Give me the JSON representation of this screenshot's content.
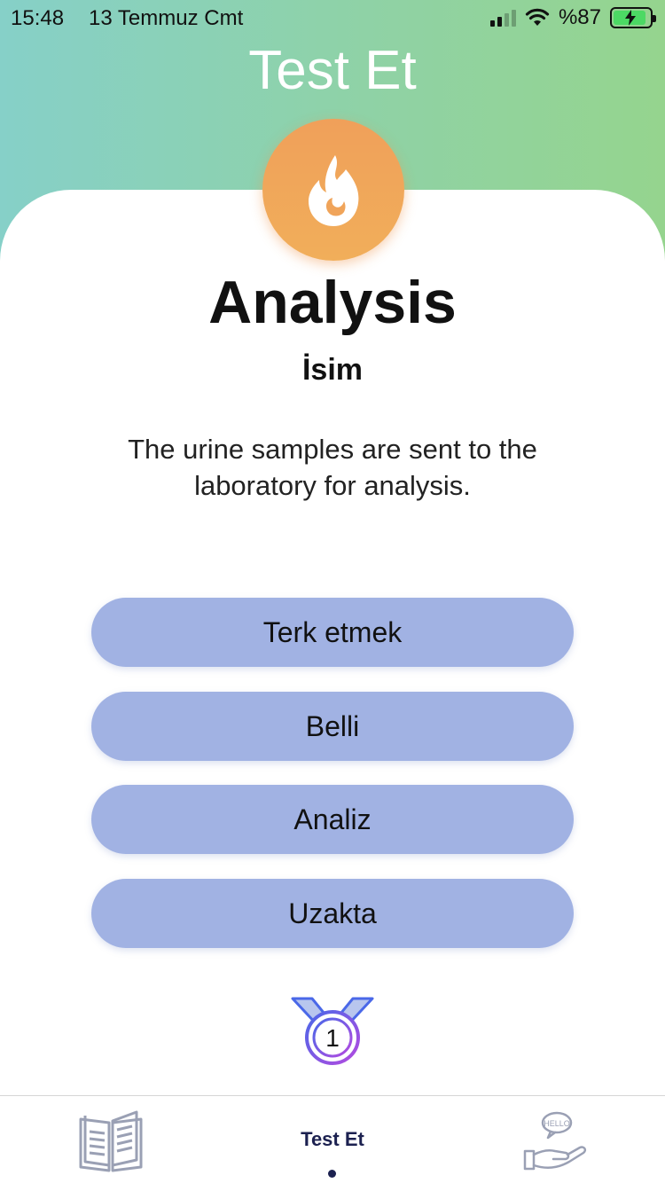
{
  "status_bar": {
    "time": "15:48",
    "date": "13 Temmuz Cmt",
    "battery": "%87"
  },
  "header": {
    "title": "Test Et"
  },
  "card": {
    "icon": "fire-icon",
    "word": "Analysis",
    "part_of_speech": "İsim",
    "example": "The urine samples are sent to the laboratory for analysis."
  },
  "options": [
    {
      "label": "Terk etmek"
    },
    {
      "label": "Belli"
    },
    {
      "label": "Analiz"
    },
    {
      "label": "Uzakta"
    }
  ],
  "medal": {
    "icon": "medal-icon",
    "count": "1"
  },
  "tabbar": {
    "tabs": [
      {
        "icon": "book-icon",
        "label": ""
      },
      {
        "icon": "",
        "label": "Test Et"
      },
      {
        "icon": "hello-hand-icon",
        "label": ""
      }
    ]
  },
  "colors": {
    "header_gradient_start": "#86d0c8",
    "header_gradient_end": "#95d48e",
    "badge_orange": "#f0a45a",
    "option_fill": "#a1b2e3",
    "tab_active": "#1c2150"
  }
}
